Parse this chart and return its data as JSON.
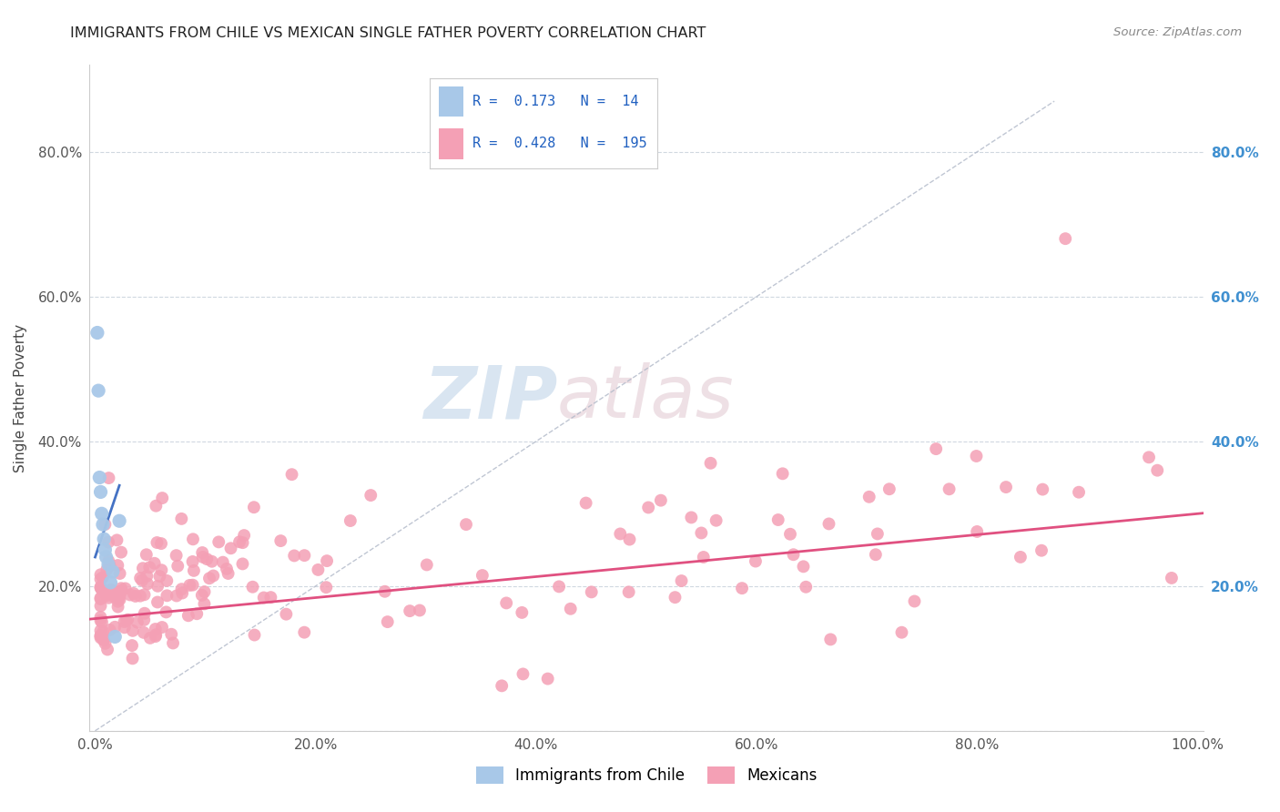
{
  "title": "IMMIGRANTS FROM CHILE VS MEXICAN SINGLE FATHER POVERTY CORRELATION CHART",
  "source_text": "Source: ZipAtlas.com",
  "ylabel": "Single Father Poverty",
  "xlim": [
    0.0,
    1.0
  ],
  "ylim": [
    0.0,
    0.9
  ],
  "blue_color": "#a8c8e8",
  "pink_color": "#f4a0b5",
  "blue_line_color": "#4472c4",
  "pink_line_color": "#e05080",
  "diag_line_color": "#b0b8c8",
  "background_color": "#ffffff",
  "grid_color": "#d0d8e0",
  "title_color": "#222222",
  "source_color": "#888888",
  "legend_num_color": "#2060c0",
  "right_axis_color": "#4090d0",
  "watermark_zip_color": "#c8d8e8",
  "watermark_atlas_color": "#d8c8d0"
}
